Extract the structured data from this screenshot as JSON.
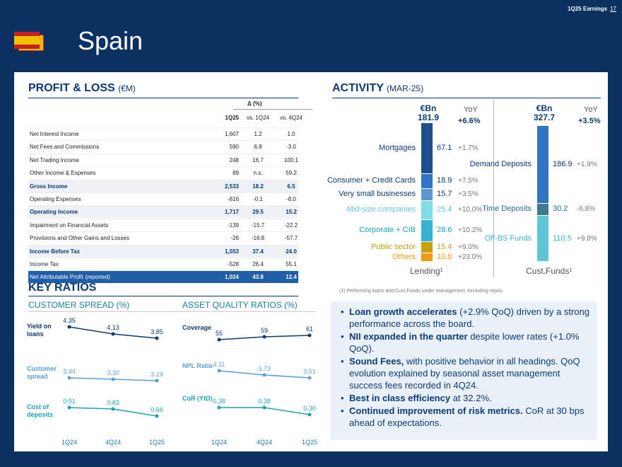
{
  "header": {
    "deck": "1Q25 Earnings",
    "page": "17",
    "title": "Spain"
  },
  "pl": {
    "title": "PROFIT & LOSS",
    "unit": "(€M)",
    "delta_header": "Δ (%)",
    "columns": [
      "1Q25",
      "vs. 1Q24",
      "vs. 4Q24"
    ],
    "rows": [
      {
        "label": "Net Interest Income",
        "v1": "1,607",
        "v2": "1.2",
        "v3": "1.0"
      },
      {
        "label": "Net Fees and Commissions",
        "v1": "590",
        "v2": "6.8",
        "v3": "-3.0"
      },
      {
        "label": "Net Trading Income",
        "v1": "248",
        "v2": "16.7",
        "v3": "100.1"
      },
      {
        "label": "Other Income & Expenses",
        "v1": "89",
        "v2": "n.s.",
        "v3": "59.2"
      },
      {
        "label": "Gross Income",
        "v1": "2,533",
        "v2": "18.2",
        "v3": "6.5"
      },
      {
        "label": "Operating Expenses",
        "v1": "-816",
        "v2": "-0.1",
        "v3": "-8.0"
      },
      {
        "label": "Operating Income",
        "v1": "1,717",
        "v2": "29.5",
        "v3": "15.2"
      },
      {
        "label": "Impairment on Financial Assets",
        "v1": "-139",
        "v2": "-15.7",
        "v3": "-22.2"
      },
      {
        "label": "Provisions and Other Gains and Losses",
        "v1": "-26",
        "v2": "-16.8",
        "v3": "-57.7"
      },
      {
        "label": "Income Before Tax",
        "v1": "1,553",
        "v2": "37.4",
        "v3": "24.0"
      },
      {
        "label": "Income Tax",
        "v1": "-528",
        "v2": "26.4",
        "v3": "55.1"
      },
      {
        "label": "Net Attributable Profit",
        "label_suffix": "(reported)",
        "v1": "1,024",
        "v2": "43.8",
        "v3": "12.4"
      }
    ]
  },
  "ratios": {
    "title": "KEY RATIOS",
    "spread_title": "CUSTOMER SPREAD (%)",
    "quality_title": "ASSET QUALITY RATIOS (%)",
    "periods": [
      "1Q24",
      "4Q24",
      "1Q25"
    ],
    "spread": [
      {
        "label": "Yield on loans",
        "values": [
          "4.35",
          "4.13",
          "3.85"
        ],
        "color": "#0b3a78"
      },
      {
        "label": "Customer spread",
        "values": [
          "3.44",
          "3.30",
          "3.19"
        ],
        "color": "#5aa0d8"
      },
      {
        "label": "Cost of deposits",
        "values": [
          "0.91",
          "0.83",
          "0.66"
        ],
        "color": "#1aa3b8"
      }
    ],
    "quality": [
      {
        "label": "Coverage",
        "values": [
          "55",
          "59",
          "61"
        ],
        "color": "#0b3a78"
      },
      {
        "label": "NPL Ratio",
        "values": [
          "4.11",
          "3.73",
          "3.51"
        ],
        "color": "#5aa0d8"
      },
      {
        "label": "CoR (YtD)",
        "values": [
          "0.38",
          "0.38",
          "0.30"
        ],
        "color": "#1aa3b8"
      }
    ]
  },
  "activity": {
    "title": "ACTIVITY",
    "date": "(MAR-25)",
    "lending": {
      "unit": "€Bn",
      "total": "181.9",
      "yoy_label": "YoY",
      "total_yoy": "+6.6%",
      "axis_label": "Lending¹",
      "items": [
        {
          "label": "Mortgages",
          "value": "67.1",
          "yoy": "+1.7%",
          "color": "#1f4e8c",
          "text_color": "#0b3a78"
        },
        {
          "label": "Consumer + Credit Cards",
          "value": "18.9",
          "yoy": "+7.5%",
          "color": "#2f74c0",
          "text_color": "#0b3a78"
        },
        {
          "label": "Very small businesses",
          "value": "15.7",
          "yoy": "+3.5%",
          "color": "#5b97d6",
          "text_color": "#0b3a78"
        },
        {
          "label": "Mid-size companies",
          "value": "25.4",
          "yoy": "+10.0%",
          "color": "#7fdde8",
          "text_color": "#5ec7d6"
        },
        {
          "label": "Corporate + CIB",
          "value": "28.6",
          "yoy": "+10.2%",
          "color": "#35b3cf",
          "text_color": "#1aa3b8"
        },
        {
          "label": "Public sector",
          "value": "15.4",
          "yoy": "+9.0%",
          "color": "#c8a010",
          "text_color": "#c8a010"
        },
        {
          "label": "Others",
          "value": "10.8",
          "yoy": "+23.0%",
          "color": "#f39a12",
          "text_color": "#f39a12"
        }
      ]
    },
    "funds": {
      "unit": "€Bn",
      "total": "327.7",
      "yoy_label": "YoY",
      "total_yoy": "+3.5%",
      "axis_label": "Cust.Funds¹",
      "items": [
        {
          "label": "Demand Deposits",
          "value": "186.9",
          "yoy": "+1.9%",
          "color": "#2f74c0",
          "text_color": "#0b3a78"
        },
        {
          "label": "Time Deposits",
          "value": "30.2",
          "yoy": "-6.8%",
          "color": "#3f7a90",
          "text_color": "#2a6f8a"
        },
        {
          "label": "Off-BS Funds",
          "value": "110.5",
          "yoy": "+9.8%",
          "color": "#5ec7d6",
          "text_color": "#3db5c8"
        }
      ]
    },
    "footnote": "(1) Performing loans and Cust.Funds under management, excluding repos."
  },
  "bullets": [
    {
      "bold": "Loan growth accelerates",
      "rest": " (+2.9% QoQ) driven by a strong performance across the board."
    },
    {
      "bold": "NII expanded in the quarter",
      "rest": " despite lower rates (+1.0% QoQ)."
    },
    {
      "bold": "Sound Fees,",
      "rest": " with positive behavior in all headings. QoQ evolution explained by seasonal asset management success fees recorded in 4Q24."
    },
    {
      "bold": "Best in class efficiency",
      "rest": " at 32.2%."
    },
    {
      "bold": "Continued improvement of risk metrics.",
      "rest": " CoR at 30 bps ahead of expectations."
    }
  ]
}
